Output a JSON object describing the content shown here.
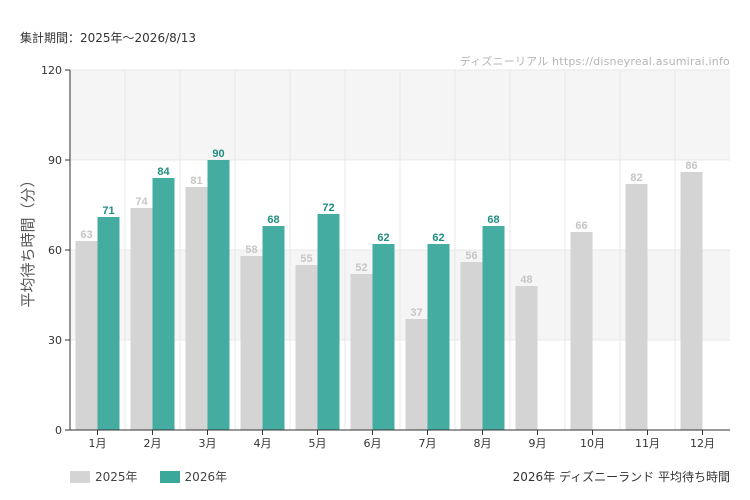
{
  "header": {
    "period_label": "集計期間：2025年～2026/8/13",
    "credit": "ディズニーリアル https://disneyreal.asumirai.info"
  },
  "footer": {
    "caption": "2026年 ディズニーランド 平均待ち時間"
  },
  "colors": {
    "s2025": "#d4d4d4",
    "s2025_label": "#c6c6c6",
    "s2026": "#3aa89b",
    "s2026_label": "#1f8f82",
    "band": "#f5f5f5",
    "grid": "#e8e8e8",
    "axis": "#333333"
  },
  "chart_data": {
    "type": "bar",
    "title": "",
    "ylabel": "平均待ち時間（分）",
    "xlabel": "",
    "ylim": [
      0,
      120
    ],
    "yticks": [
      0,
      30,
      60,
      90,
      120
    ],
    "grid": true,
    "legend_position": "bottom-left",
    "categories": [
      "1月",
      "2月",
      "3月",
      "4月",
      "5月",
      "6月",
      "7月",
      "8月",
      "9月",
      "10月",
      "11月",
      "12月"
    ],
    "series": [
      {
        "name": "2025年",
        "values": [
          63,
          74,
          81,
          58,
          55,
          52,
          37,
          56,
          48,
          66,
          82,
          86
        ]
      },
      {
        "name": "2026年",
        "values": [
          71,
          84,
          90,
          68,
          72,
          62,
          62,
          68,
          null,
          null,
          null,
          null
        ]
      }
    ]
  }
}
